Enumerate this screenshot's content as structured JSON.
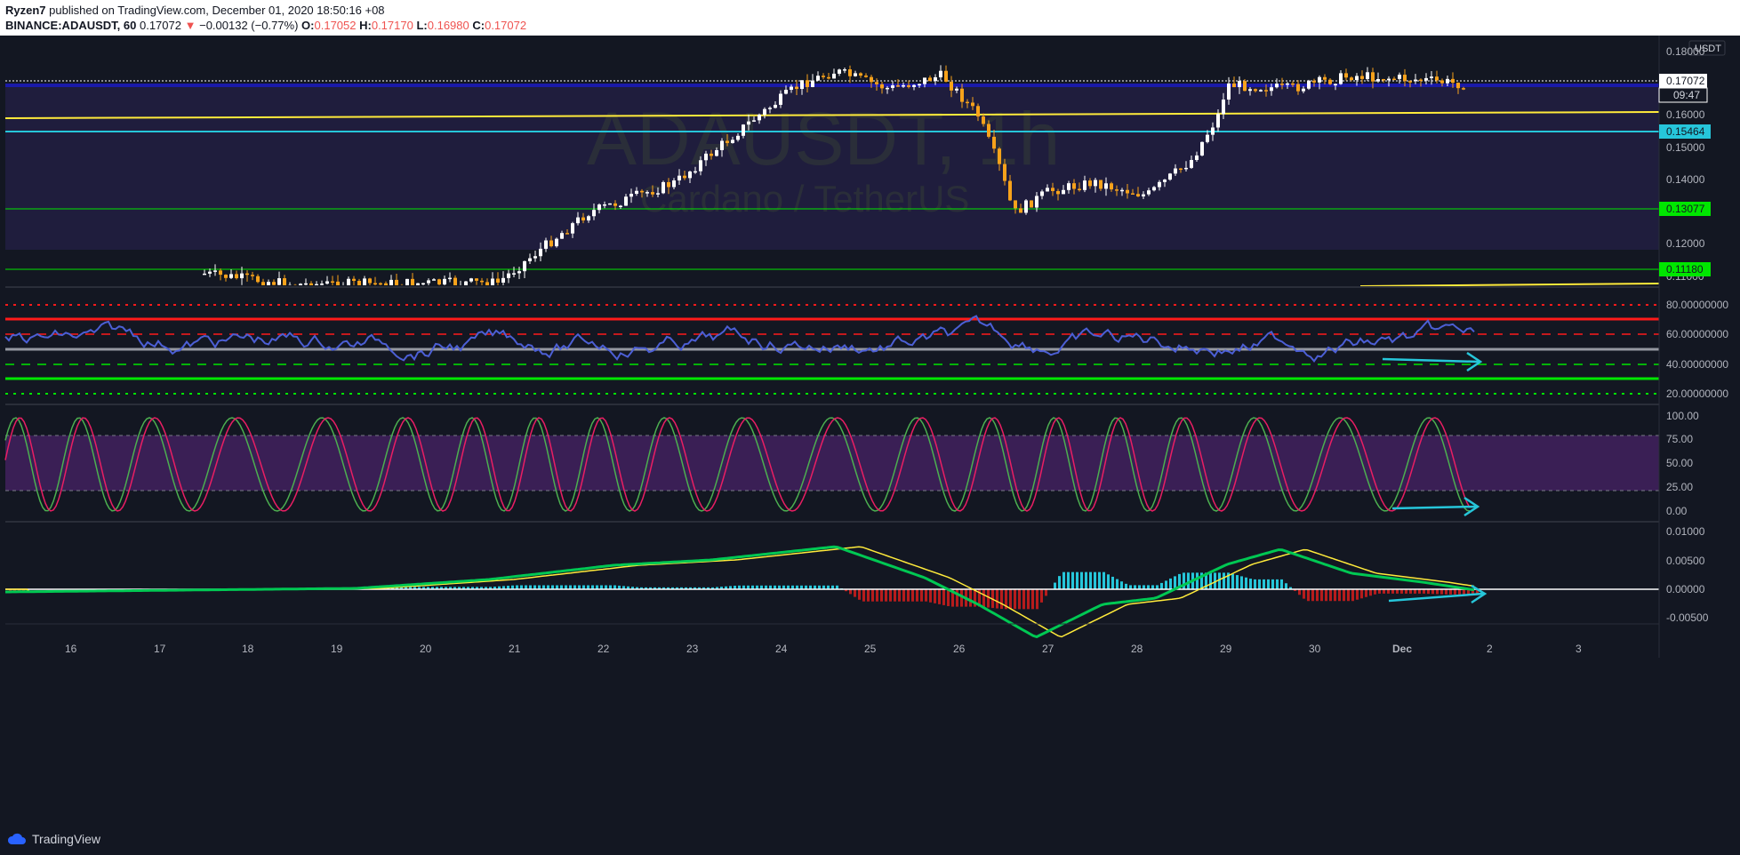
{
  "header": {
    "author": "Ryzen7",
    "published_text": "published on TradingView.com, December 01, 2020 18:50:16 +08",
    "symbol": "BINANCE:ADAUSDT, 60",
    "last": "0.17072",
    "change": "−0.00132 (−0.77%)",
    "o_label": "O:",
    "o": "0.17052",
    "h_label": "H:",
    "h": "0.17170",
    "l_label": "L:",
    "l": "0.16980",
    "c_label": "C:",
    "c": "0.17072"
  },
  "watermark": {
    "line1": "ADAUSDT, 1h",
    "line2": "Cardano / TetherUS"
  },
  "price_axis": {
    "currency": "USDT",
    "ticks": [
      "0.18000",
      "0.16000",
      "0.15000",
      "0.14000",
      "0.12000",
      "0.11000"
    ],
    "current_price": "0.17072",
    "countdown": "09:47",
    "levels": [
      {
        "label": "0.15464",
        "color": "#26c6da"
      },
      {
        "label": "0.13077",
        "color": "#00e600"
      },
      {
        "label": "0.11180",
        "color": "#00e600"
      }
    ]
  },
  "rsi_axis": {
    "ticks": [
      "80.00000000",
      "60.00000000",
      "40.00000000",
      "20.00000000"
    ]
  },
  "stoch_axis": {
    "ticks": [
      "100.00",
      "75.00",
      "50.00",
      "25.00",
      "0.00"
    ]
  },
  "macd_axis": {
    "ticks": [
      "0.01000",
      "0.00500",
      "0.00000",
      "-0.00500"
    ]
  },
  "time_axis": {
    "ticks": [
      "16",
      "17",
      "18",
      "19",
      "20",
      "21",
      "22",
      "23",
      "24",
      "25",
      "26",
      "27",
      "28",
      "29",
      "30",
      "Dec",
      "2",
      "3"
    ]
  },
  "colors": {
    "background": "#131722",
    "up": "#ffffff",
    "down": "#f7a21b",
    "rsi": "#4c5fd5",
    "stoch_k": "#4caf50",
    "stoch_d": "#e91e63",
    "macd": "#00c853",
    "signal": "#ffeb3b",
    "hist_up": "#26c6da",
    "hist_down": "#b71c1c"
  },
  "footer": {
    "brand": "TradingView"
  }
}
